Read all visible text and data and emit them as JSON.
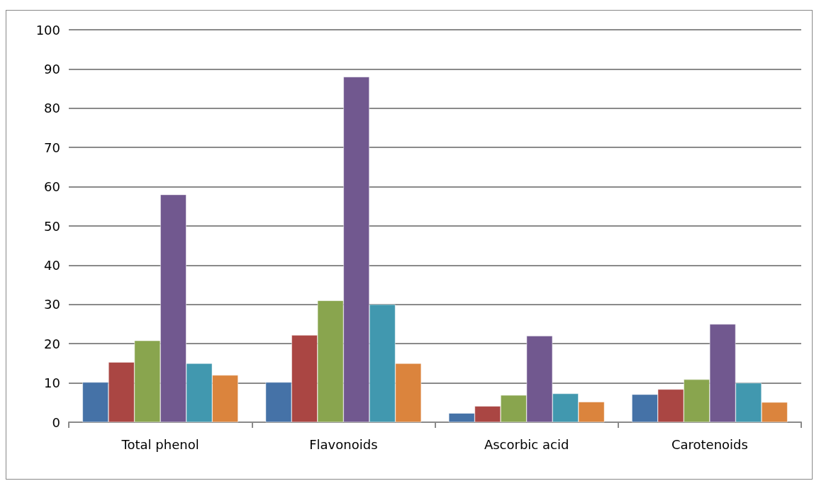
{
  "chart_data": {
    "type": "bar",
    "categories": [
      "Total phenol",
      "Flavonoids",
      "Ascorbic acid",
      "Carotenoids"
    ],
    "series": [
      {
        "color": "#4572a7",
        "values": [
          10.2,
          10.2,
          2.3,
          7.1
        ]
      },
      {
        "color": "#aa4643",
        "values": [
          15.3,
          22.2,
          4.1,
          8.4
        ]
      },
      {
        "color": "#89a54e",
        "values": [
          20.8,
          31,
          6.9,
          10.9
        ]
      },
      {
        "color": "#71588f",
        "values": [
          58,
          88,
          22,
          25
        ]
      },
      {
        "color": "#4198af",
        "values": [
          15,
          30,
          7.3,
          10
        ]
      },
      {
        "color": "#db843d",
        "values": [
          12,
          15,
          5.2,
          5.1
        ]
      }
    ],
    "ylim": [
      0,
      100
    ],
    "yticks": [
      0,
      10,
      20,
      30,
      40,
      50,
      60,
      70,
      80,
      90,
      100
    ],
    "grid": "y"
  }
}
